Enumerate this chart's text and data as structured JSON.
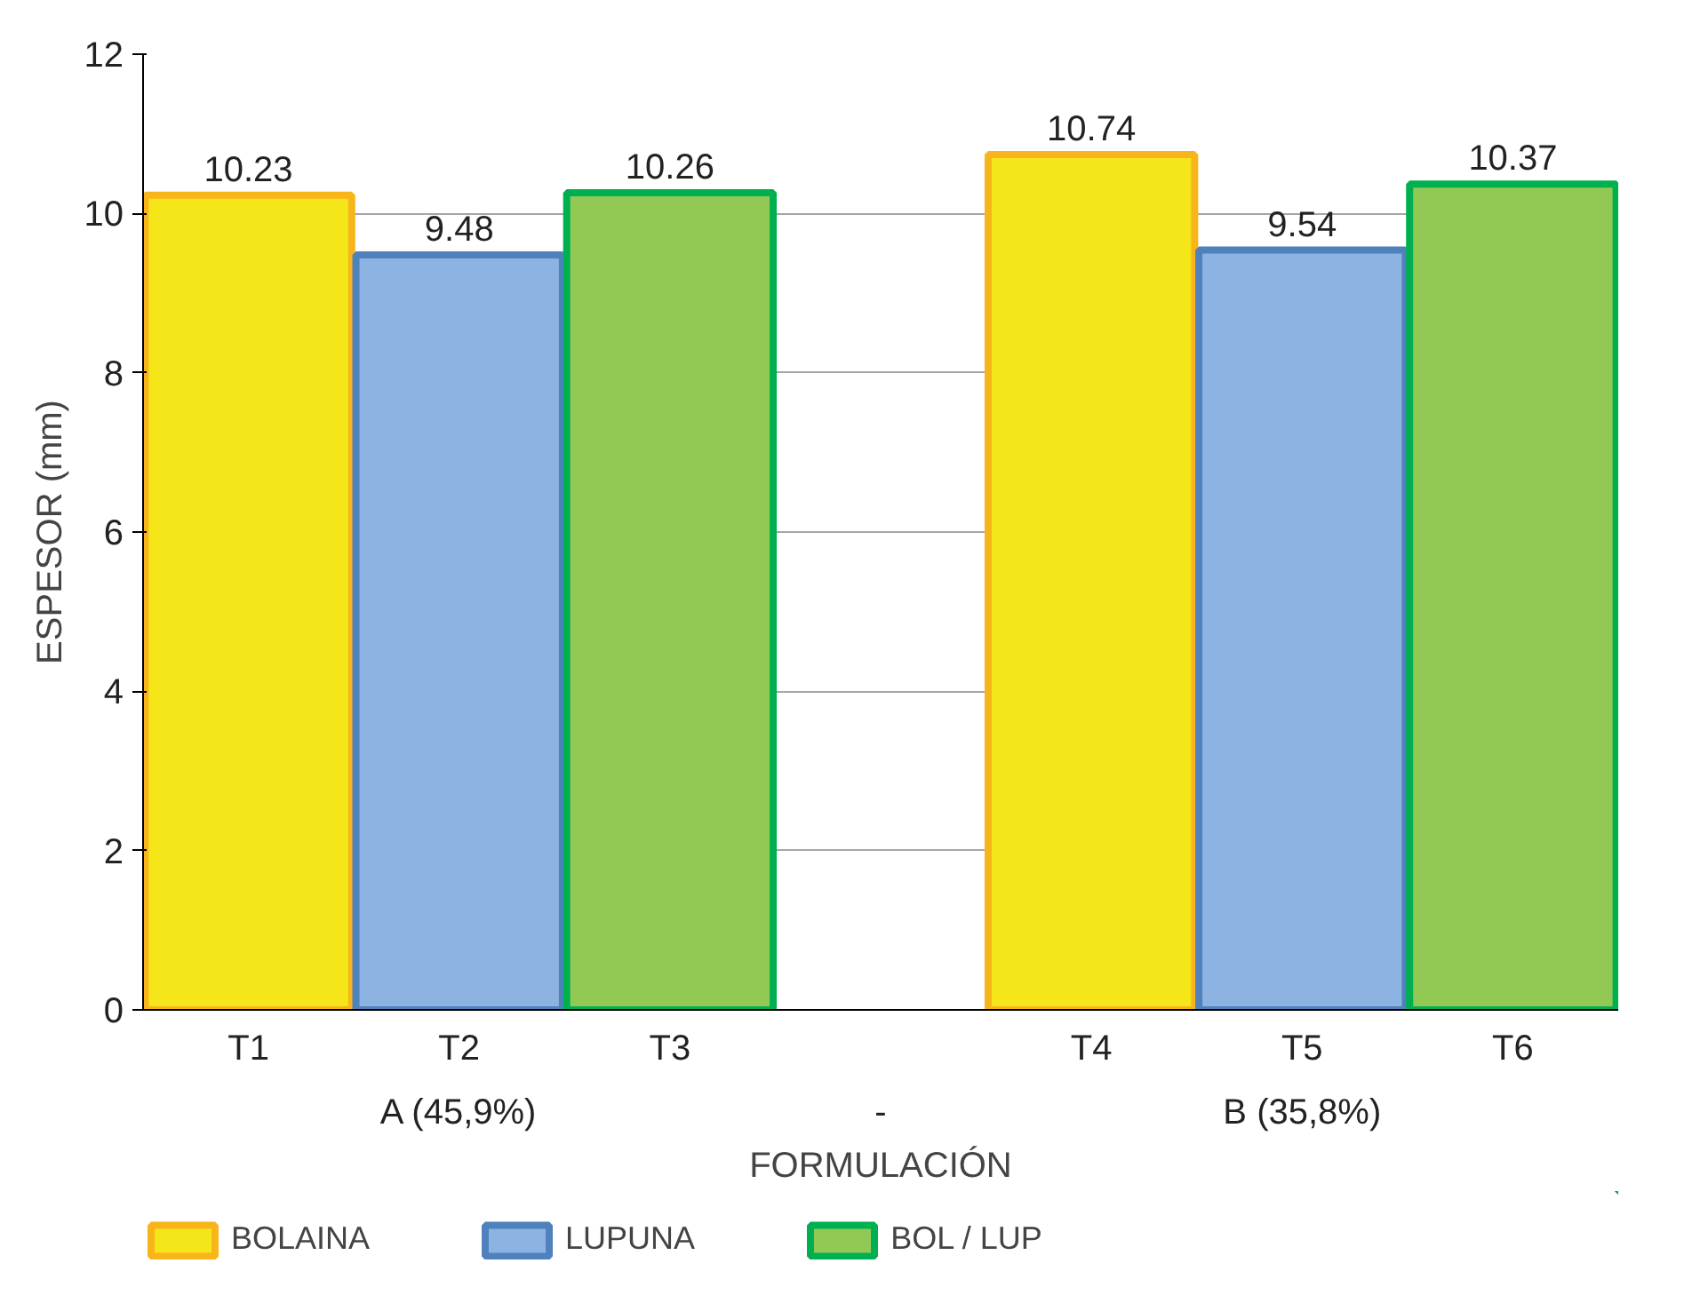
{
  "chart_data": {
    "type": "bar",
    "xlabel": "FORMULACIÓN",
    "ylabel": "ESPESOR (mm)",
    "categories": [
      "T1",
      "T2",
      "T3",
      null,
      "T4",
      "T5",
      "T6"
    ],
    "annotations": [
      "A (45,9%)",
      "-",
      "B (35,8%)"
    ],
    "series": [
      {
        "name": "BOLAINA",
        "color": "#f5e61a",
        "values": [
          10.23,
          null,
          null,
          null,
          10.74,
          null,
          null
        ]
      },
      {
        "name": "LUPUNA",
        "color": "#8db3e2",
        "values": [
          null,
          9.48,
          null,
          null,
          null,
          9.54,
          null
        ]
      },
      {
        "name": "BOL / LUP",
        "color": "#92c955",
        "values": [
          null,
          null,
          10.26,
          null,
          null,
          null,
          10.37
        ]
      }
    ],
    "ylim": [
      0,
      12
    ],
    "yticks": [
      0,
      2,
      4,
      6,
      8,
      10,
      12
    ],
    "grid": "y",
    "legend": "bottom",
    "data_labels": true
  }
}
